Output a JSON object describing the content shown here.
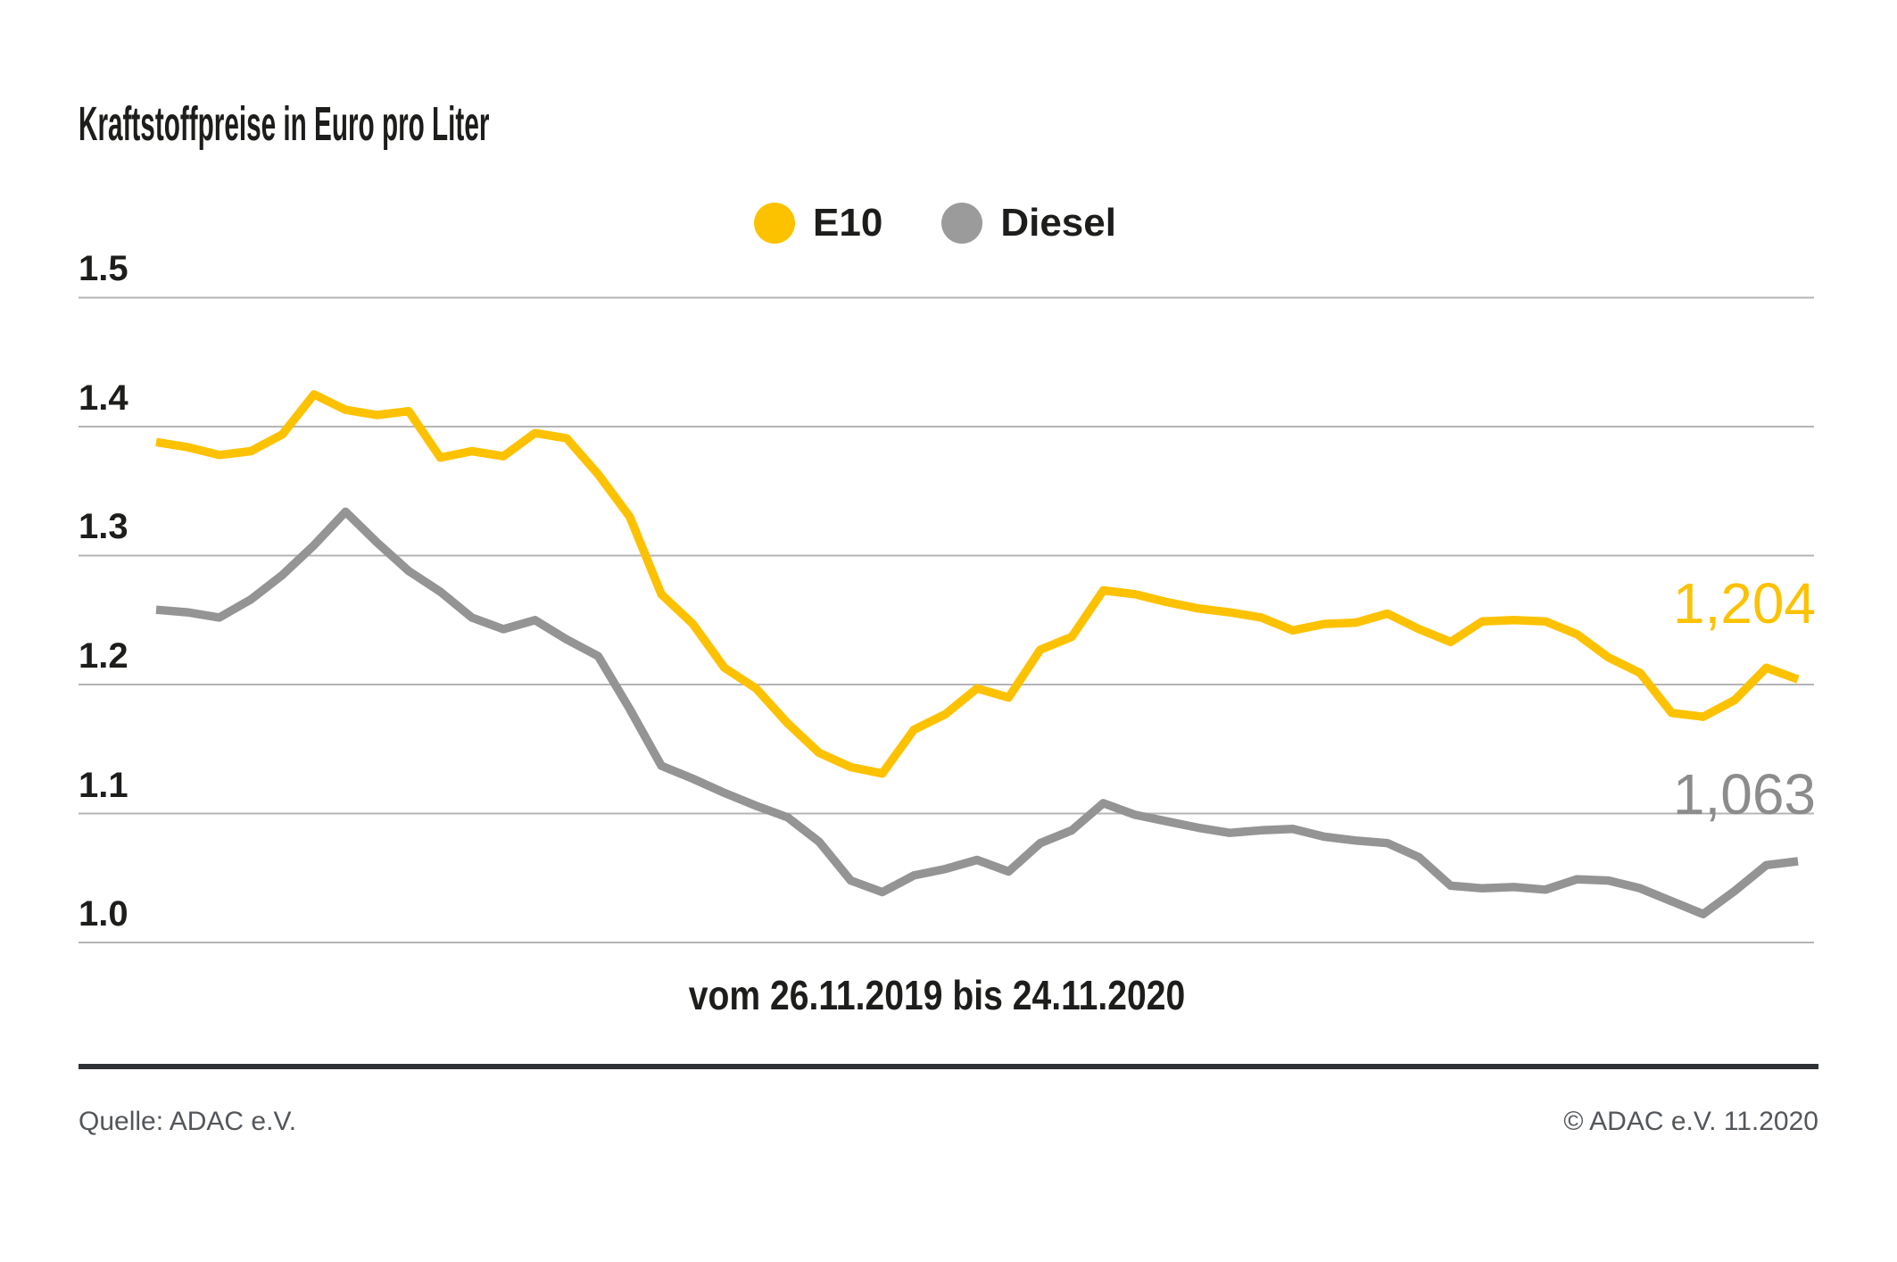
{
  "title": "Kraftstoffpreise in Euro pro Liter",
  "period_label": "vom 26.11.2019 bis 24.11.2020",
  "footer": {
    "source": "Quelle: ADAC e.V.",
    "copyright": "© ADAC e.V. 11.2020"
  },
  "theme": {
    "e10_color": "#FCC200",
    "diesel_color": "#949494",
    "diesel_swatch_color": "#9B9B9B",
    "diesel_label_color": "#8C8C8C",
    "grid_color": "#B4B4B4",
    "text_color": "#1D1D1B",
    "footer_text_color": "#53565A",
    "footer_rule_color": "#2E3135"
  },
  "chart_data": {
    "type": "line",
    "title": "Kraftstoffpreise in Euro pro Liter",
    "xlabel": "vom 26.11.2019 bis 24.11.2020",
    "ylabel": "Euro pro Liter",
    "ylim": [
      0.95,
      1.55
    ],
    "yticks": [
      1.0,
      1.1,
      1.2,
      1.3,
      1.4,
      1.5
    ],
    "ytick_labels": [
      "1.0",
      "1.1",
      "1.2",
      "1.3",
      "1.4",
      "1.5"
    ],
    "grid": true,
    "legend_position": "top-center",
    "series": [
      {
        "name": "E10",
        "color": "#FCC200",
        "end_label": "1,204",
        "final_value": 1.204,
        "values": [
          1.388,
          1.384,
          1.378,
          1.381,
          1.394,
          1.425,
          1.413,
          1.409,
          1.412,
          1.376,
          1.381,
          1.377,
          1.395,
          1.391,
          1.363,
          1.33,
          1.27,
          1.247,
          1.213,
          1.197,
          1.17,
          1.147,
          1.136,
          1.131,
          1.165,
          1.177,
          1.197,
          1.19,
          1.227,
          1.237,
          1.273,
          1.27,
          1.264,
          1.259,
          1.256,
          1.252,
          1.242,
          1.247,
          1.248,
          1.255,
          1.243,
          1.233,
          1.249,
          1.25,
          1.249,
          1.239,
          1.221,
          1.209,
          1.178,
          1.175,
          1.188,
          1.213,
          1.204
        ]
      },
      {
        "name": "Diesel",
        "color": "#949494",
        "end_label": "1,063",
        "final_value": 1.063,
        "values": [
          1.258,
          1.256,
          1.252,
          1.266,
          1.285,
          1.308,
          1.334,
          1.31,
          1.288,
          1.272,
          1.252,
          1.243,
          1.25,
          1.235,
          1.222,
          1.181,
          1.137,
          1.127,
          1.116,
          1.106,
          1.097,
          1.078,
          1.048,
          1.039,
          1.052,
          1.057,
          1.064,
          1.055,
          1.077,
          1.087,
          1.108,
          1.099,
          1.094,
          1.089,
          1.085,
          1.087,
          1.088,
          1.082,
          1.079,
          1.077,
          1.066,
          1.044,
          1.042,
          1.043,
          1.041,
          1.049,
          1.048,
          1.042,
          1.032,
          1.022,
          1.04,
          1.06,
          1.063
        ]
      }
    ]
  }
}
